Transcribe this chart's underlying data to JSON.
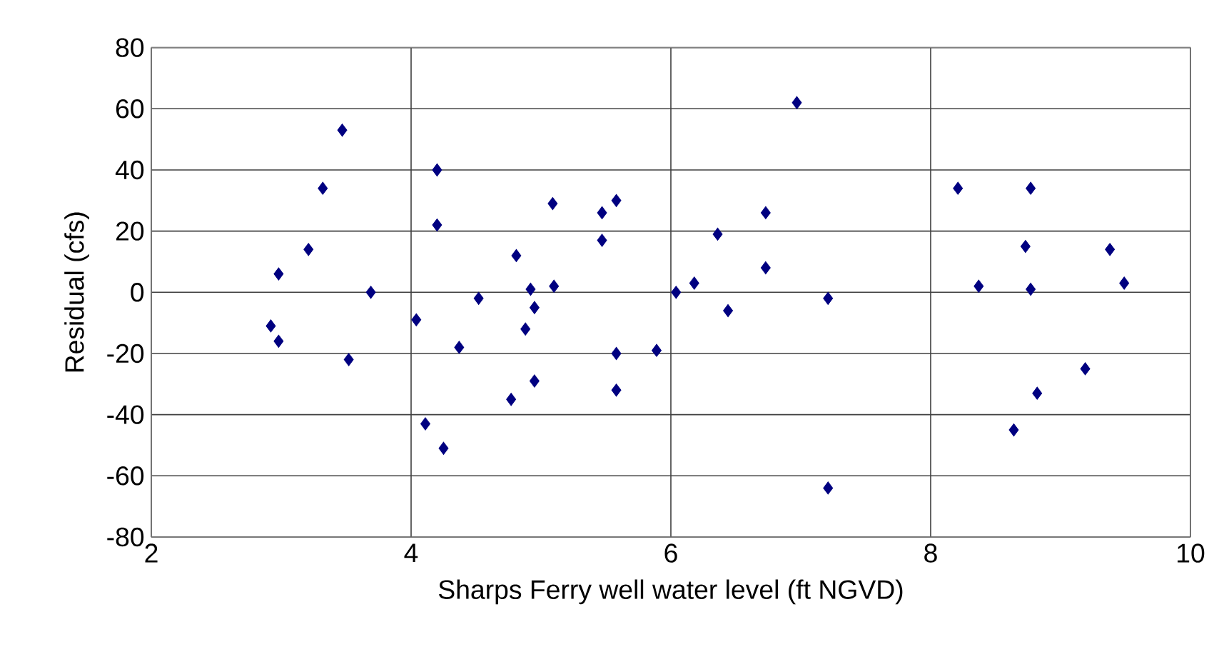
{
  "chart_data": {
    "type": "scatter",
    "xlabel": "Sharps Ferry well water level (ft NGVD)",
    "ylabel": "Residual (cfs)",
    "xlim": [
      2,
      10
    ],
    "xticks": [
      2,
      4,
      6,
      8,
      10
    ],
    "ylim": [
      -80,
      80
    ],
    "yticks": [
      -80,
      -60,
      -40,
      -20,
      0,
      20,
      40,
      60,
      80
    ],
    "grid": true,
    "marker": "diamond",
    "series": [
      {
        "color": "#000080",
        "x": [
          2.92,
          2.98,
          2.98,
          3.21,
          3.32,
          3.47,
          3.52,
          3.69,
          4.04,
          4.11,
          4.2,
          4.2,
          4.25,
          4.37,
          4.52,
          4.77,
          4.81,
          4.88,
          4.92,
          4.95,
          4.95,
          5.09,
          5.1,
          5.47,
          5.47,
          5.58,
          5.58,
          5.58,
          5.89,
          6.04,
          6.18,
          6.36,
          6.44,
          6.73,
          6.73,
          6.97,
          7.21,
          7.21,
          8.21,
          8.37,
          8.73,
          8.77,
          8.77,
          8.64,
          8.82,
          9.19,
          9.38,
          9.49
        ],
        "values": [
          -11,
          -16,
          6,
          14,
          34,
          53,
          -22,
          0,
          -9,
          -43,
          40,
          22,
          -51,
          -18,
          -2,
          -35,
          12,
          -12,
          1,
          -5,
          -29,
          29,
          2,
          26,
          17,
          -20,
          -32,
          30,
          -19,
          0,
          3,
          19,
          -6,
          26,
          8,
          62,
          -2,
          -64,
          34,
          2,
          15,
          34,
          1,
          -45,
          -33,
          -25,
          14,
          3
        ]
      }
    ]
  }
}
